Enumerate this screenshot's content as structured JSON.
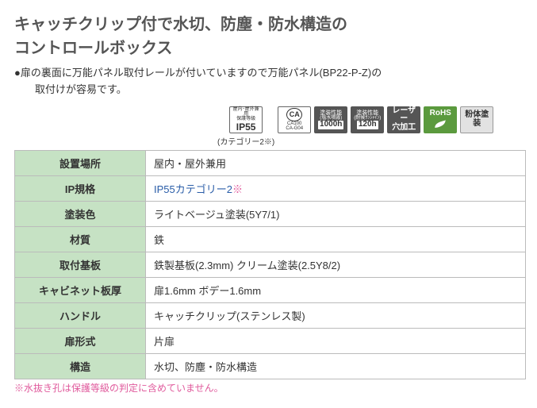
{
  "title_line1": "キャッチクリップ付で水切、防塵・防水構造の",
  "title_line2": "コントロールボックス",
  "description_bullet": "●扉の裏面に万能パネル取付レールが付いていますので万能パネル(BP22-P-Z)の",
  "description_line2": "取付けが容易です。",
  "badges": {
    "ip55": {
      "top": "屋内･屋外兼用",
      "mid": "保護等級",
      "big": "IP55",
      "caption": "(カテゴリー2※)"
    },
    "ca": {
      "label": "CA",
      "sub": "CA100\nCA-G04"
    },
    "paint1": {
      "top": "塗装性能",
      "mid": "(塩水噴霧)",
      "big": "1000h"
    },
    "paint2": {
      "top": "塗装性能",
      "mid": "(耐候ｻﾝｼｬｲﾝ)",
      "big": "120h"
    },
    "laser": {
      "line1": "レーザー",
      "line2": "穴加工"
    },
    "rohs": {
      "label": "RoHS"
    },
    "powder": {
      "label": "粉体塗装"
    }
  },
  "table": {
    "rows": [
      {
        "label": "設置場所",
        "value": "屋内・屋外兼用"
      },
      {
        "label": "IP規格",
        "value": "IP55カテゴリー2",
        "link": true,
        "star": true
      },
      {
        "label": "塗装色",
        "value": "ライトベージュ塗装(5Y7/1)"
      },
      {
        "label": "材質",
        "value": "鉄"
      },
      {
        "label": "取付基板",
        "value": "鉄製基板(2.3mm) クリーム塗装(2.5Y8/2)"
      },
      {
        "label": "キャビネット板厚",
        "value": "扉1.6mm ボデー1.6mm"
      },
      {
        "label": "ハンドル",
        "value": "キャッチクリップ(ステンレス製)"
      },
      {
        "label": "扉形式",
        "value": "片扉"
      },
      {
        "label": "構造",
        "value": "水切、防塵・防水構造"
      }
    ]
  },
  "footnote_star": "※",
  "footnote_text": "水抜き孔は保護等級の判定に含めていません。",
  "colors": {
    "header_bg": "#c6e2c4",
    "border": "#bbbbbb",
    "note": "#e05a9c",
    "link": "#2a5da8",
    "title": "#555555"
  }
}
